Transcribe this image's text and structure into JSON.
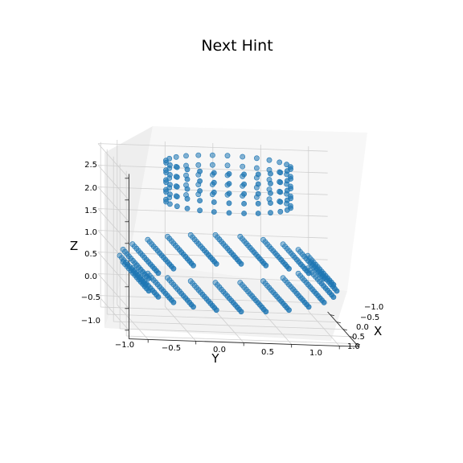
{
  "chart_data": {
    "type": "scatter3d",
    "title": "Next Hint",
    "xlabel": "X",
    "ylabel": "Y",
    "zlabel": "Z",
    "xlim": [
      -1.2,
      1.2
    ],
    "ylim": [
      -1.2,
      1.2
    ],
    "zlim": [
      -1.2,
      2.6
    ],
    "x_ticks": [
      "−1.0",
      "−0.5",
      "0.0",
      "0.5",
      "1.0"
    ],
    "y_ticks": [
      "−1.0",
      "−0.5",
      "0.0",
      "0.5",
      "1.0"
    ],
    "z_ticks": [
      "−1.0",
      "−0.5",
      "0.0",
      "0.5",
      "1.0",
      "1.5",
      "2.0",
      "2.5"
    ],
    "grid": true,
    "marker_color": "#1f77b4",
    "shapes": [
      {
        "kind": "cylinder",
        "axis": "x",
        "radius": 1.0,
        "length": [
          -1.0,
          1.0
        ],
        "rings": 14,
        "points_per_ring": 24
      },
      {
        "kind": "cylinder",
        "axis": "z",
        "radius": 0.65,
        "length": [
          1.6,
          2.5
        ],
        "rings": 5,
        "points_per_ring": 26
      }
    ]
  }
}
